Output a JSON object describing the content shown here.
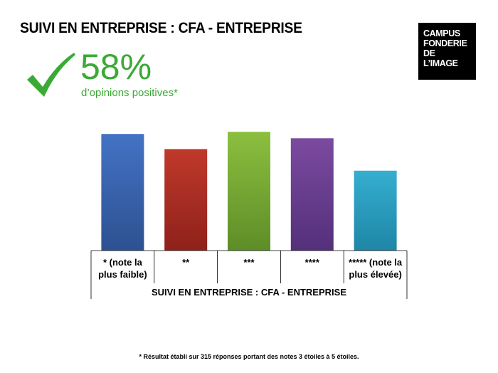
{
  "header": {
    "title": "SUIVI EN ENTREPRISE : CFA - ENTREPRISE"
  },
  "logo": {
    "lines": [
      "CAMPUS",
      "FONDERIE",
      "DE",
      "L’IMAGE"
    ]
  },
  "kpi": {
    "value": "58%",
    "caption": "d’opinions positives*",
    "icon": "checkmark-icon",
    "color": "#3aaa35"
  },
  "chart_data": {
    "type": "bar",
    "categories": [
      [
        "* (note la",
        "plus faible)"
      ],
      [
        "**"
      ],
      [
        "***"
      ],
      [
        "****"
      ],
      [
        "***** (note la",
        "plus élevée)"
      ]
    ],
    "values": [
      27,
      23.5,
      27.5,
      26,
      18.5
    ],
    "ylim": [
      0,
      30
    ],
    "xlabel": "SUIVI EN ENTREPRISE : CFA - ENTREPRISE",
    "ylabel": "",
    "grid": false,
    "colors": [
      "#4472c4",
      "#c0392b",
      "#8cbf3f",
      "#7b4aa0",
      "#35aed0"
    ],
    "colors_dark": [
      "#2d5191",
      "#8e211b",
      "#5e8d28",
      "#54307a",
      "#1f86a6"
    ]
  },
  "footnote": "* Résultat établi sur 315 réponses portant des notes 3 étoiles à 5 étoiles."
}
